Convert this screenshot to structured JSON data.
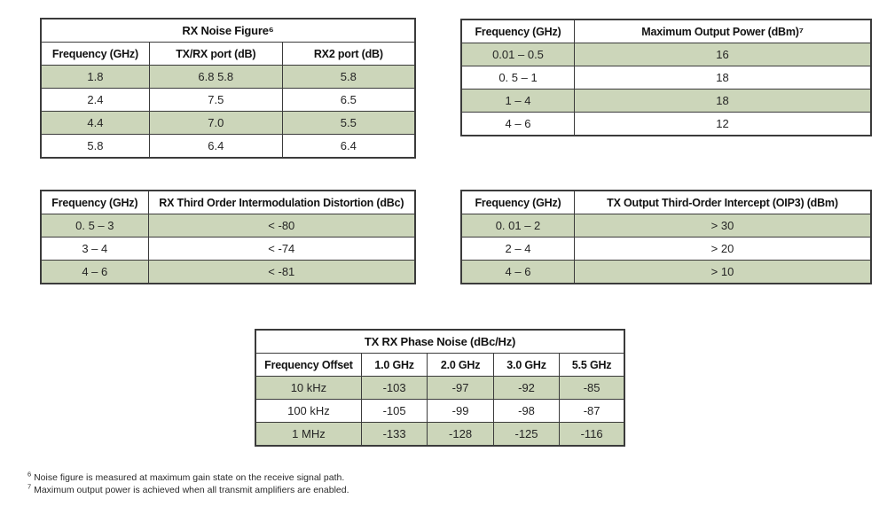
{
  "colors": {
    "row_shade": "#ccd6ba",
    "border": "#3b3b3b",
    "text": "#1c1c1c"
  },
  "tables": [
    {
      "id": "rx-noise-figure",
      "title": "RX Noise Figure⁶",
      "headers": [
        "Frequency (GHz)",
        "TX/RX port (dB)",
        "RX2 port (dB)"
      ],
      "rows": [
        [
          "1.8",
          "6.8 5.8",
          "5.8"
        ],
        [
          "2.4",
          "7.5",
          "6.5"
        ],
        [
          "4.4",
          "7.0",
          "5.5"
        ],
        [
          "5.8",
          "6.4",
          "6.4"
        ]
      ]
    },
    {
      "id": "max-output-power",
      "title": null,
      "headers": [
        "Frequency (GHz)",
        "Maximum Output Power (dBm)⁷"
      ],
      "rows": [
        [
          "0.01 – 0.5",
          "16"
        ],
        [
          "0. 5 – 1",
          "18"
        ],
        [
          "1 – 4",
          "18"
        ],
        [
          "4 – 6",
          "12"
        ]
      ]
    },
    {
      "id": "rx-third-order-imd",
      "title": null,
      "headers": [
        "Frequency (GHz)",
        "RX Third Order Intermodulation Distortion (dBc)"
      ],
      "rows": [
        [
          "0. 5 – 3",
          "< -80"
        ],
        [
          "3 – 4",
          "< -74"
        ],
        [
          "4 – 6",
          "< -81"
        ]
      ]
    },
    {
      "id": "tx-oip3",
      "title": null,
      "headers": [
        "Frequency (GHz)",
        "TX Output Third-Order Intercept (OIP3) (dBm)"
      ],
      "rows": [
        [
          "0. 01 – 2",
          "> 30"
        ],
        [
          "2 – 4",
          "> 20"
        ],
        [
          "4 – 6",
          "> 10"
        ]
      ]
    },
    {
      "id": "tx-rx-phase-noise",
      "title": "TX RX Phase Noise (dBc/Hz)",
      "headers": [
        "Frequency Offset",
        "1.0 GHz",
        "2.0 GHz",
        "3.0 GHz",
        "5.5 GHz"
      ],
      "rows": [
        [
          "10 kHz",
          "-103",
          "-97",
          "-92",
          "-85"
        ],
        [
          "100 kHz",
          "-105",
          "-99",
          "-98",
          "-87"
        ],
        [
          "1 MHz",
          "-133",
          "-128",
          "-125",
          "-116"
        ]
      ]
    }
  ],
  "footnotes": [
    {
      "marker": "6",
      "text": "Noise figure is measured at maximum gain state on the receive signal path."
    },
    {
      "marker": "7",
      "text": "Maximum output power is achieved when all transmit amplifiers are enabled."
    }
  ]
}
